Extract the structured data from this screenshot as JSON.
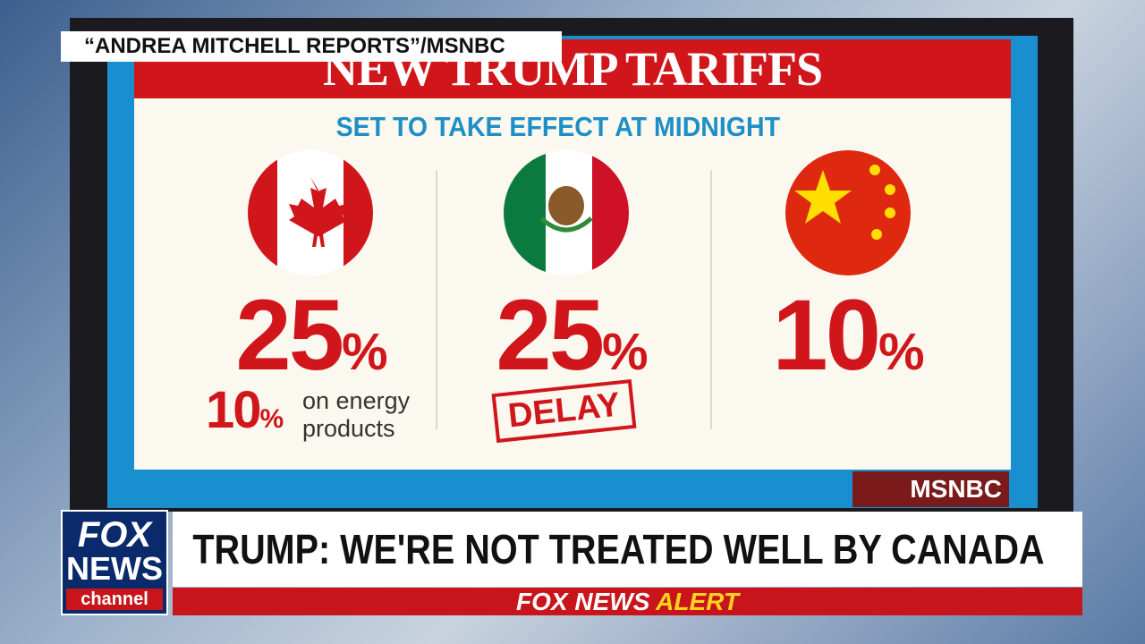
{
  "source_label": "“ANDREA MITCHELL REPORTS”/MSNBC",
  "graphic": {
    "title": "NEW TRUMP TARIFFS",
    "subtitle": "SET TO TAKE EFFECT AT MIDNIGHT",
    "columns": [
      {
        "rate": {
          "value": "25",
          "unit": "%"
        },
        "note_rate": {
          "value": "10",
          "unit": "%"
        },
        "note": "on energy products"
      },
      {
        "rate": {
          "value": "25",
          "unit": "%"
        },
        "stamp": "DELAY"
      },
      {
        "rate": {
          "value": "10",
          "unit": "%"
        }
      }
    ],
    "network_logo": "MSNBC"
  },
  "lower_third": {
    "logo": {
      "line1": "FOX",
      "line2": "NEWS",
      "line3": "channel"
    },
    "headline": "TRUMP: WE'RE NOT TREATED WELL BY CANADA",
    "alert": {
      "prefix": "FOX NEWS",
      "word": "ALERT"
    }
  }
}
